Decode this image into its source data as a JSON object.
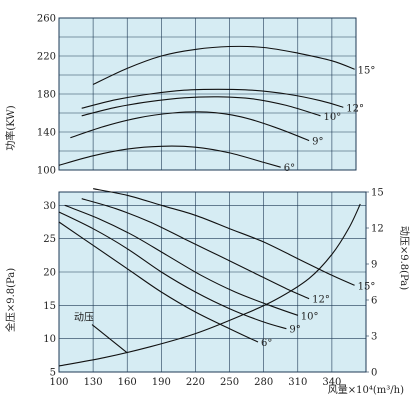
{
  "colors": {
    "plot_background": "#d6ecf3",
    "grid": "#1f3a55",
    "curve": "#111111",
    "text": "#222222"
  },
  "chart_data": [
    {
      "type": "line",
      "panel": "power",
      "ylabel": "功率(KW)",
      "ylim": [
        100,
        260
      ],
      "y_ticks": [
        "100",
        "140",
        "180",
        "220",
        "260"
      ],
      "xlim": [
        100,
        370
      ],
      "grid": true,
      "series": [
        {
          "name": "6°",
          "points": [
            [
              100,
              105
            ],
            [
              130,
              115
            ],
            [
              160,
              122
            ],
            [
              190,
              125
            ],
            [
              220,
              124
            ],
            [
              250,
              118
            ],
            [
              280,
              108
            ],
            [
              295,
              103
            ]
          ]
        },
        {
          "name": "9°",
          "points": [
            [
              110,
              134
            ],
            [
              140,
              146
            ],
            [
              170,
              155
            ],
            [
              200,
              160
            ],
            [
              230,
              161
            ],
            [
              260,
              156
            ],
            [
              290,
              145
            ],
            [
              320,
              131
            ]
          ]
        },
        {
          "name": "10°",
          "points": [
            [
              120,
              157
            ],
            [
              150,
              166
            ],
            [
              180,
              172
            ],
            [
              210,
              176
            ],
            [
              240,
              177
            ],
            [
              270,
              175
            ],
            [
              300,
              168
            ],
            [
              330,
              157
            ]
          ]
        },
        {
          "name": "12°",
          "points": [
            [
              120,
              165
            ],
            [
              150,
              174
            ],
            [
              180,
              180
            ],
            [
              210,
              184
            ],
            [
              240,
              185
            ],
            [
              270,
              184
            ],
            [
              300,
              180
            ],
            [
              330,
              173
            ],
            [
              350,
              166
            ]
          ]
        },
        {
          "name": "15°",
          "points": [
            [
              130,
              190
            ],
            [
              160,
              207
            ],
            [
              190,
              220
            ],
            [
              220,
              227
            ],
            [
              250,
              230
            ],
            [
              280,
              229
            ],
            [
              310,
              223
            ],
            [
              340,
              215
            ],
            [
              360,
              206
            ]
          ]
        }
      ]
    },
    {
      "type": "line",
      "panel": "pressure",
      "xlabel": "风量×10⁴(m³/h)",
      "ylabel": "全压×9.8(Pa)",
      "y2label": "动压×9.8(Pa)",
      "ylim": [
        5,
        32
      ],
      "y_ticks": [
        "5",
        "10",
        "15",
        "20",
        "25",
        "30"
      ],
      "y2lim": [
        0,
        15
      ],
      "y2_ticks": [
        "0",
        "3",
        "6",
        "9",
        "12",
        "15"
      ],
      "xlim": [
        100,
        370
      ],
      "x_ticks": [
        "100",
        "130",
        "160",
        "190",
        "220",
        "250",
        "280",
        "310",
        "340"
      ],
      "grid": true,
      "series": [
        {
          "name": "6°",
          "points": [
            [
              100,
              27.5
            ],
            [
              130,
              24
            ],
            [
              160,
              20.5
            ],
            [
              190,
              17
            ],
            [
              220,
              14
            ],
            [
              250,
              11.5
            ],
            [
              275,
              9.5
            ]
          ]
        },
        {
          "name": "9°",
          "points": [
            [
              100,
              29
            ],
            [
              130,
              26.5
            ],
            [
              160,
              23.5
            ],
            [
              190,
              20
            ],
            [
              220,
              17
            ],
            [
              250,
              14.5
            ],
            [
              280,
              12.5
            ],
            [
              300,
              11.5
            ]
          ]
        },
        {
          "name": "10°",
          "points": [
            [
              105,
              30
            ],
            [
              135,
              28
            ],
            [
              165,
              25.5
            ],
            [
              195,
              22.5
            ],
            [
              225,
              19.5
            ],
            [
              255,
              17
            ],
            [
              285,
              15
            ],
            [
              310,
              13.5
            ]
          ]
        },
        {
          "name": "12°",
          "points": [
            [
              120,
              31
            ],
            [
              150,
              29.5
            ],
            [
              180,
              27.5
            ],
            [
              210,
              25
            ],
            [
              240,
              22.5
            ],
            [
              270,
              20
            ],
            [
              300,
              17.5
            ],
            [
              320,
              16
            ]
          ]
        },
        {
          "name": "15°",
          "points": [
            [
              130,
              32.5
            ],
            [
              160,
              31.5
            ],
            [
              190,
              30
            ],
            [
              220,
              28.5
            ],
            [
              250,
              26.5
            ],
            [
              280,
              24.5
            ],
            [
              310,
              22
            ],
            [
              340,
              19.5
            ],
            [
              360,
              18
            ]
          ]
        },
        {
          "name": "动压",
          "axis": "y2",
          "points": [
            [
              100,
              0.5
            ],
            [
              140,
              1.2
            ],
            [
              180,
              2.1
            ],
            [
              220,
              3.2
            ],
            [
              260,
              4.7
            ],
            [
              290,
              6.0
            ],
            [
              320,
              7.8
            ],
            [
              340,
              9.8
            ],
            [
              355,
              12.0
            ],
            [
              365,
              14.0
            ]
          ]
        }
      ]
    }
  ]
}
